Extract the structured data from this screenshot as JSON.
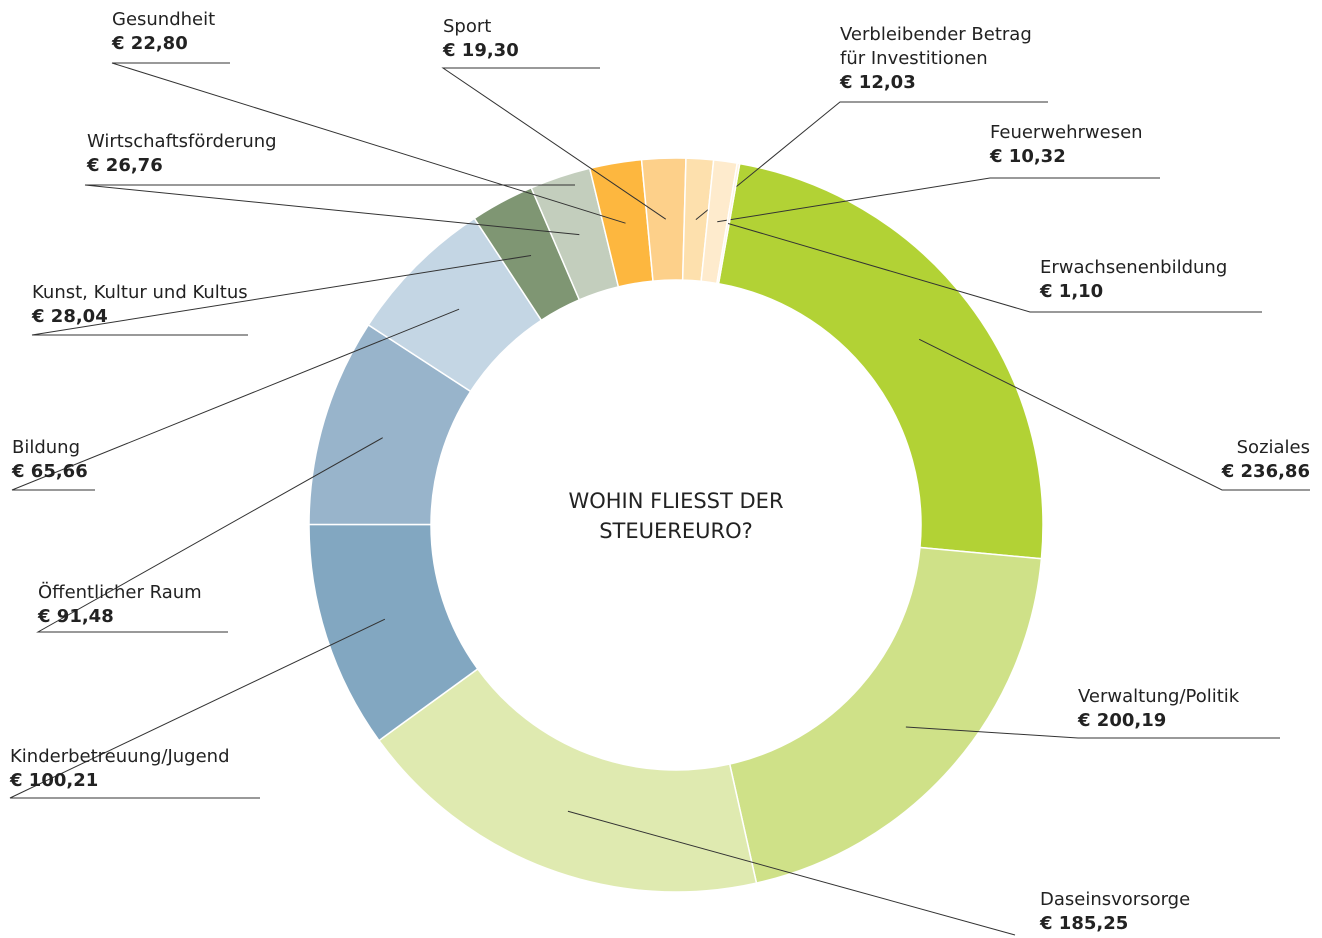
{
  "chart_data": {
    "type": "donut",
    "title": "WOHIN FLIESST DER STEUEREURO?",
    "categories": [
      "Soziales",
      "Verwaltung/Politik",
      "Daseinsvorsorge",
      "Kinderbetreuung/Jugend",
      "Öffentlicher Raum",
      "Bildung",
      "Kunst, Kultur und Kultus",
      "Wirtschaftsförderung",
      "Gesundheit",
      "Sport",
      "Verbleibender Betrag für Investitionen",
      "Feuerwehrwesen",
      "Erwachsenenbildung"
    ],
    "values": [
      236.86,
      200.19,
      185.25,
      100.21,
      91.48,
      65.66,
      28.04,
      26.76,
      22.8,
      19.3,
      12.03,
      10.32,
      1.1
    ],
    "value_labels": [
      "€ 236,86",
      "€ 200,19",
      "€ 185,25",
      "€ 100,21",
      "€ 91,48",
      "€ 65,66",
      "€ 28,04",
      "€ 26,76",
      "€ 22,80",
      "€ 19,30",
      "€ 12,03",
      "€ 10,32",
      "€ 1,10"
    ],
    "colors": [
      "#b2d235",
      "#cfe188",
      "#dfeab0",
      "#82a7c1",
      "#98b4cb",
      "#c4d6e4",
      "#7f9673",
      "#c3cebd",
      "#fdb73f",
      "#fdd08a",
      "#fde0ad",
      "#feebcd",
      "#fff1dc"
    ]
  }
}
